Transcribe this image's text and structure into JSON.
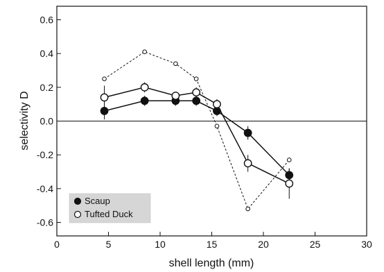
{
  "chart_data": {
    "type": "line",
    "xlabel": "shell length (mm)",
    "ylabel": "selectivity D",
    "xlim": [
      0,
      30
    ],
    "ylim": [
      -0.68,
      0.68
    ],
    "xticks": [
      0,
      5,
      10,
      15,
      20,
      25,
      30
    ],
    "xtick_labels": [
      "0",
      "5",
      "10",
      "15",
      "20",
      "25",
      "30"
    ],
    "yticks": [
      0.6,
      0.4,
      0.2,
      0.0,
      -0.2,
      -0.4,
      -0.6
    ],
    "ytick_labels": [
      "0.6",
      "0.4",
      "0.2",
      "0.0",
      "-0.2",
      "-0.4",
      "-0.6"
    ],
    "zero_line": true,
    "grid": false,
    "legend_position": "bottom-left",
    "series": [
      {
        "name": "Scaup",
        "style": "filled-circle-solid-line",
        "color": "#111111",
        "x": [
          4.6,
          8.5,
          11.5,
          13.5,
          15.5,
          18.5,
          22.5
        ],
        "y": [
          0.06,
          0.12,
          0.12,
          0.12,
          0.06,
          -0.07,
          -0.32
        ],
        "err": [
          0.05,
          0.03,
          0.03,
          0.03,
          0.03,
          0.04,
          0.04
        ]
      },
      {
        "name": "Tufted Duck",
        "style": "open-circle-solid-line",
        "color": "#111111",
        "x": [
          4.6,
          8.5,
          11.5,
          13.5,
          15.5,
          18.5,
          22.5
        ],
        "y": [
          0.14,
          0.2,
          0.15,
          0.17,
          0.1,
          -0.25,
          -0.37
        ],
        "err": [
          0.07,
          0.03,
          0.02,
          0.03,
          0.03,
          0.05,
          0.09
        ]
      },
      {
        "style": "small-open-circle-dashed-line",
        "color": "#111111",
        "x": [
          4.6,
          8.5,
          11.5,
          13.5,
          15.5,
          18.5,
          22.5
        ],
        "y": [
          0.25,
          0.41,
          0.34,
          0.25,
          -0.03,
          -0.52,
          -0.23
        ]
      }
    ]
  }
}
